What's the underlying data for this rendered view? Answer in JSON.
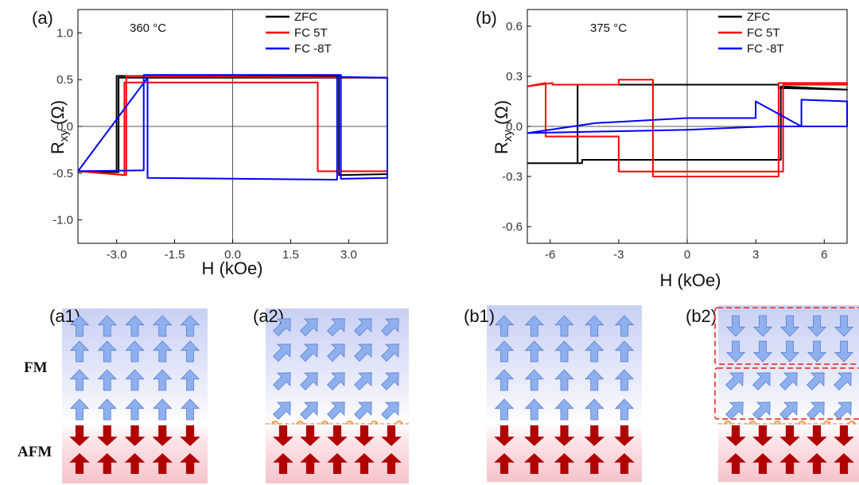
{
  "chart_data": [
    {
      "type": "line",
      "panel_label": "(a)",
      "annotation": "360 °C",
      "xlabel": "H (kOe)",
      "ylabel_main": "R",
      "ylabel_sub": "xy",
      "ylabel_unit": " (Ω)",
      "xlim": [
        -4.0,
        4.0
      ],
      "ylim": [
        -1.25,
        1.25
      ],
      "xticks": [
        -3.0,
        -1.5,
        0.0,
        1.5,
        3.0
      ],
      "xtick_labels": [
        "-3.0",
        "-1.5",
        "0.0",
        "1.5",
        "3.0"
      ],
      "yticks": [
        -1.0,
        -0.5,
        0.0,
        0.5,
        1.0
      ],
      "ytick_labels": [
        "-1.0",
        "-0.5",
        "0.0",
        "0.5",
        "1.0"
      ],
      "zero_lines": true,
      "legend_position": "top-right",
      "series": [
        {
          "name": "ZFC",
          "color": "#000000",
          "x": [
            -4.0,
            -3.0,
            -3.0,
            2.75,
            2.75,
            4.0,
            4.0,
            -2.95,
            -2.95,
            -4.0
          ],
          "y": [
            -0.48,
            -0.48,
            0.54,
            0.54,
            -0.52,
            -0.51,
            0.52,
            0.52,
            -0.49,
            -0.48
          ]
        },
        {
          "name": "FC  5T",
          "color": "#ff0000",
          "x": [
            -4.0,
            -2.8,
            -2.8,
            2.2,
            2.2,
            4.0,
            4.0,
            -2.75,
            -2.75,
            -4.0
          ],
          "y": [
            -0.48,
            -0.52,
            0.47,
            0.47,
            -0.48,
            -0.48,
            0.52,
            0.54,
            -0.52,
            -0.48
          ]
        },
        {
          "name": "FC -8T",
          "color": "#0000ff",
          "x": [
            -4.0,
            -2.3,
            -2.3,
            2.8,
            2.8,
            4.0,
            4.0,
            2.7,
            2.7,
            -2.2,
            -2.2,
            -4.0
          ],
          "y": [
            -0.48,
            -0.47,
            0.55,
            0.55,
            -0.56,
            -0.55,
            0.52,
            0.53,
            -0.57,
            -0.55,
            0.52,
            -0.48
          ]
        }
      ]
    },
    {
      "type": "line",
      "panel_label": "(b)",
      "annotation": "375 °C",
      "xlabel": "H (kOe)",
      "ylabel_main": "R",
      "ylabel_sub": "xy",
      "ylabel_unit": " (Ω)",
      "xlim": [
        -7.0,
        7.0
      ],
      "ylim": [
        -0.7,
        0.7
      ],
      "xticks": [
        -6,
        -3,
        0,
        3,
        6
      ],
      "xtick_labels": [
        "-6",
        "-3",
        "0",
        "3",
        "6"
      ],
      "yticks": [
        -0.6,
        -0.3,
        0.0,
        0.3,
        0.6
      ],
      "ytick_labels": [
        "-0.6",
        "-0.3",
        "0.0",
        "0.3",
        "0.6"
      ],
      "zero_lines": true,
      "legend_position": "top-right",
      "series": [
        {
          "name": "ZFC",
          "color": "#000000",
          "x": [
            -7.0,
            -4.8,
            -4.8,
            4.0,
            4.0,
            7.0,
            7.0,
            4.1,
            4.1,
            -4.6,
            -4.6,
            -7.0
          ],
          "y": [
            -0.22,
            -0.22,
            0.25,
            0.25,
            0.23,
            0.22,
            0.22,
            0.24,
            -0.2,
            -0.2,
            -0.22,
            -0.22
          ]
        },
        {
          "name": "FC  5T",
          "color": "#ff0000",
          "x": [
            -7.0,
            -6.2,
            -6.2,
            -3.0,
            -3.0,
            4.2,
            4.2,
            7.0,
            7.0,
            4.0,
            4.0,
            -1.5,
            -1.5,
            -3.0,
            -3.0,
            -5.9,
            -5.9,
            -7.0
          ],
          "y": [
            0.24,
            0.26,
            -0.06,
            -0.06,
            -0.27,
            -0.27,
            0.25,
            0.25,
            0.26,
            0.26,
            -0.3,
            -0.3,
            0.28,
            0.28,
            0.25,
            0.25,
            0.26,
            0.24
          ]
        },
        {
          "name": "FC -8T",
          "color": "#0000ff",
          "x": [
            -7.0,
            0.0,
            3.5,
            7.0,
            7.0,
            5.0,
            5.0,
            3.0,
            3.0,
            0.0,
            -4.0,
            -7.0
          ],
          "y": [
            -0.04,
            -0.02,
            0.0,
            0.0,
            0.15,
            0.16,
            0.0,
            0.15,
            0.05,
            0.05,
            0.02,
            -0.04
          ]
        }
      ]
    }
  ],
  "schematic": {
    "fm_label": "FM",
    "afm_label": "AFM",
    "panels": [
      {
        "label": "(a1)",
        "fm_state": "up",
        "fm_rows": 4,
        "interface": false,
        "boxes": false
      },
      {
        "label": "(a2)",
        "fm_state": "tilted",
        "fm_rows": 4,
        "interface": true,
        "boxes": false
      },
      {
        "label": "(b1)",
        "fm_state": "up",
        "fm_rows": 4,
        "interface": false,
        "boxes": false
      },
      {
        "label": "(b2)",
        "fm_state": "down_then_tilted",
        "fm_rows": 4,
        "interface": true,
        "boxes": true
      }
    ],
    "colors": {
      "fm_arrow": "#8fb0ee",
      "fm_arrow_stroke": "#5a7fcf",
      "afm_arrow": "#b00000",
      "interface_dot": "#e8a040",
      "dashed_box": "#e85050"
    }
  }
}
